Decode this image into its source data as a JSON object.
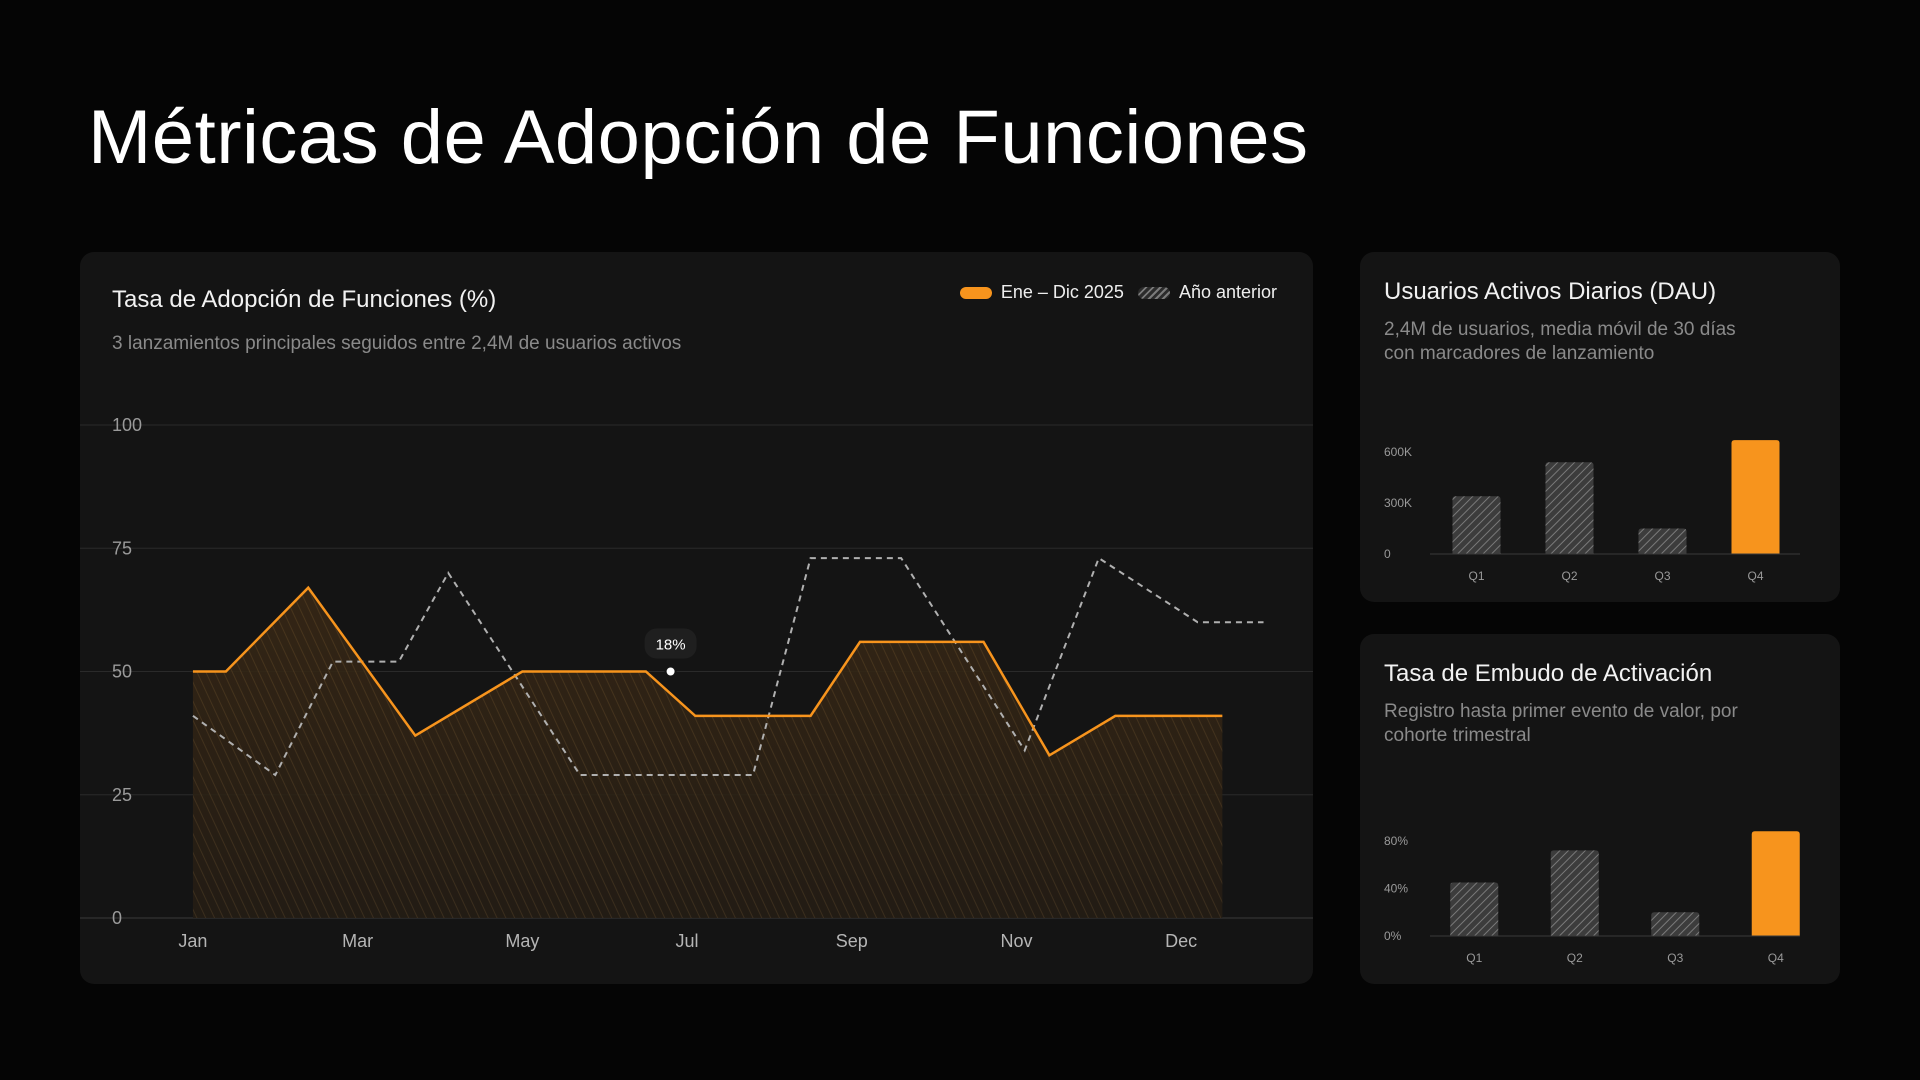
{
  "page": {
    "title": "Métricas de Adopción de Funciones"
  },
  "colors": {
    "accent": "#f7941d",
    "muted": "#9a9a9a",
    "background": "#050505",
    "card": "#141414"
  },
  "main_card": {
    "title": "Tasa de Adopción de Funciones (%)",
    "subtitle": "3 lanzamientos principales seguidos entre 2,4M de usuarios activos",
    "legend": {
      "current": "Ene – Dic 2025",
      "previous": "Año anterior"
    },
    "tooltip": "18%"
  },
  "dau_card": {
    "title": "Usuarios Activos Diarios (DAU)",
    "subtitle_line1": "2,4M de usuarios, media móvil de 30 días",
    "subtitle_line2": "con marcadores de lanzamiento"
  },
  "funnel_card": {
    "title": "Tasa de Embudo de Activación",
    "subtitle_line1": "Registro hasta primer evento de valor, por",
    "subtitle_line2": "cohorte trimestral"
  },
  "chart_data": [
    {
      "type": "line",
      "title": "Tasa de Adopción de Funciones (%)",
      "x": [
        1,
        1.4,
        2.4,
        3.7,
        5,
        6.5,
        7.1,
        8.5,
        9.1,
        10.6,
        11.4,
        12.2,
        13.5
      ],
      "x_ticks": [
        {
          "at": 1,
          "label": "Jan"
        },
        {
          "at": 3,
          "label": "Mar"
        },
        {
          "at": 5,
          "label": "May"
        },
        {
          "at": 7,
          "label": "Jul"
        },
        {
          "at": 9,
          "label": "Sep"
        },
        {
          "at": 11,
          "label": "Nov"
        },
        {
          "at": 13,
          "label": "Dec"
        }
      ],
      "xlim": [
        0.6,
        14.2
      ],
      "ylim": [
        0,
        100
      ],
      "yticks": [
        0,
        25,
        50,
        75,
        100
      ],
      "grid": true,
      "legend_position": "top-right",
      "series": [
        {
          "name": "Ene – Dic 2025",
          "style": "solid-area",
          "values": [
            50,
            50,
            67,
            37,
            50,
            50,
            41,
            41,
            56,
            56,
            33,
            41,
            41
          ]
        },
        {
          "name": "Año anterior",
          "style": "dashed",
          "x": [
            1,
            2,
            2.7,
            3.5,
            4.1,
            5.7,
            7.8,
            8.5,
            9.6,
            11.1,
            12,
            13.2,
            14
          ],
          "values": [
            41,
            29,
            52,
            52,
            70,
            29,
            29,
            73,
            73,
            34,
            73,
            60,
            60
          ]
        }
      ],
      "annotations": [
        {
          "x": 6.8,
          "y": 50,
          "label": "18%"
        }
      ]
    },
    {
      "type": "bar",
      "title": "Usuarios Activos Diarios (DAU)",
      "categories": [
        "Q1",
        "Q2",
        "Q3",
        "Q4"
      ],
      "values": [
        340000,
        540000,
        150000,
        670000
      ],
      "ylim": [
        0,
        700000
      ],
      "yticks": [
        0,
        300000,
        600000
      ],
      "ytick_labels": [
        "0",
        "300K",
        "600K"
      ],
      "highlight": "Q4"
    },
    {
      "type": "bar",
      "title": "Tasa de Embudo de Activación",
      "categories": [
        "Q1",
        "Q2",
        "Q3",
        "Q4"
      ],
      "values": [
        45,
        72,
        20,
        88
      ],
      "ylim": [
        0,
        100
      ],
      "yticks": [
        0,
        40,
        80
      ],
      "ytick_labels": [
        "0%",
        "40%",
        "80%"
      ],
      "highlight": "Q4"
    }
  ]
}
